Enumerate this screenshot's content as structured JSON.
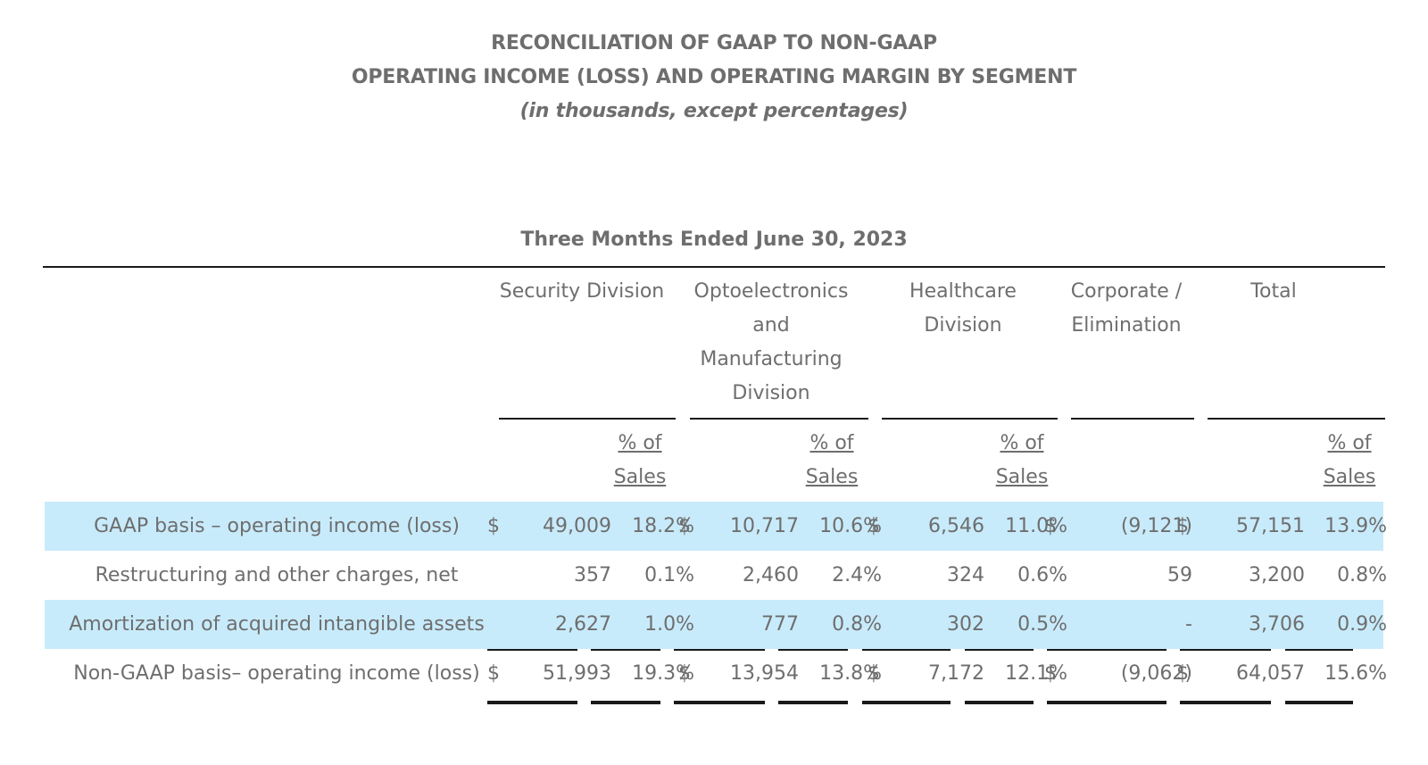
{
  "title": {
    "line1": "RECONCILIATION OF GAAP TO NON-GAAP",
    "line2": "OPERATING INCOME (LOSS) AND OPERATING MARGIN BY SEGMENT",
    "line3": "(in thousands, except percentages)"
  },
  "period": "Three Months Ended June 30, 2023",
  "columns": {
    "security": "Security Division",
    "opto": "Optoelectronics and Manufacturing Division",
    "healthcare": "Healthcare Division",
    "corporate": "Corporate / Elimination",
    "total": "Total",
    "pct_label_line1": "% of",
    "pct_label_line2": "Sales"
  },
  "rows": [
    {
      "label": "GAAP basis – operating income (loss)",
      "sec_cur": "$",
      "sec_val": "49,009",
      "sec_pct": "18.2%",
      "opt_cur": "$",
      "opt_val": "10,717",
      "opt_pct": "10.6%",
      "hc_cur": "$",
      "hc_val": "6,546",
      "hc_pct": "11.0%",
      "corp_cur": "$",
      "corp_val": "(9,121)",
      "tot_cur": "$",
      "tot_val": "57,151",
      "tot_pct": "13.9%"
    },
    {
      "label": "Restructuring and other charges, net",
      "sec_cur": "",
      "sec_val": "357",
      "sec_pct": "0.1%",
      "opt_cur": "",
      "opt_val": "2,460",
      "opt_pct": "2.4%",
      "hc_cur": "",
      "hc_val": "324",
      "hc_pct": "0.6%",
      "corp_cur": "",
      "corp_val": "59",
      "tot_cur": "",
      "tot_val": "3,200",
      "tot_pct": "0.8%"
    },
    {
      "label": "Amortization of acquired intangible assets",
      "sec_cur": "",
      "sec_val": "2,627",
      "sec_pct": "1.0%",
      "opt_cur": "",
      "opt_val": "777",
      "opt_pct": "0.8%",
      "hc_cur": "",
      "hc_val": "302",
      "hc_pct": "0.5%",
      "corp_cur": "",
      "corp_val": "-",
      "tot_cur": "",
      "tot_val": "3,706",
      "tot_pct": "0.9%"
    },
    {
      "label": "Non-GAAP basis– operating income (loss)",
      "sec_cur": "$",
      "sec_val": "51,993",
      "sec_pct": "19.3%",
      "opt_cur": "$",
      "opt_val": "13,954",
      "opt_pct": "13.8%",
      "hc_cur": "$",
      "hc_val": "7,172",
      "hc_pct": "12.1%",
      "corp_cur": "$",
      "corp_val": "(9,062)",
      "tot_cur": "$",
      "tot_val": "64,057",
      "tot_pct": "15.6%"
    }
  ],
  "colors": {
    "highlight_row": "#c8ebfb",
    "text": "#6e6e6e",
    "rule": "#1a1a1a"
  }
}
